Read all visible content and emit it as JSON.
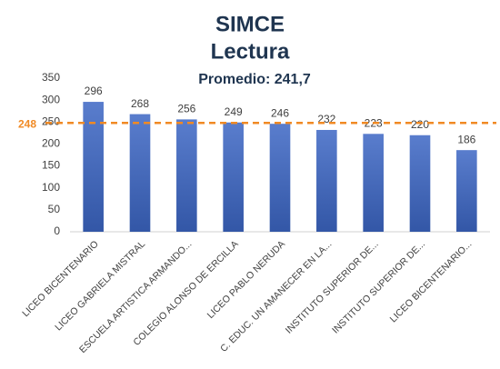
{
  "chart_data": {
    "type": "bar",
    "title": "SIMCE",
    "subtitle": "Lectura",
    "annotation": "Promedio: 241,7",
    "categories": [
      "LICEO BICENTENARIO",
      "LICEO GABRIELA MISTRAL",
      "ESCUELA ARTISTICA ARMANDO...",
      "COLEGIO ALONSO DE ERCILLA",
      "LICEO PABLO NERUDA",
      "C. EDUC. UN AMANECER EN LA...",
      "INSTITUTO SUPERIOR DE...",
      "INSTITUTO SUPERIOR DE...",
      "LICEO BICENTENARIO..."
    ],
    "values": [
      296,
      268,
      256,
      249,
      246,
      232,
      223,
      220,
      186
    ],
    "color": "#3c66c4",
    "ylim": [
      0,
      350
    ],
    "yticks": [
      0,
      50,
      100,
      150,
      200,
      250,
      300,
      350
    ],
    "grid": false,
    "reference_value": 248,
    "reference_color": "#f08a24"
  }
}
